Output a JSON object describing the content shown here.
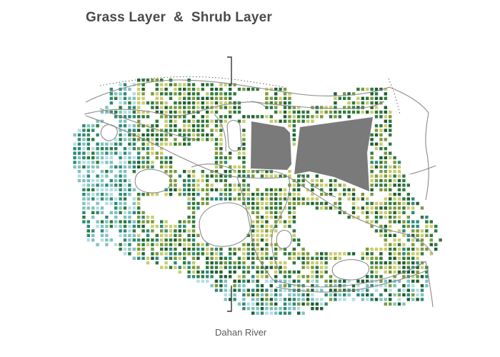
{
  "title": "Grass Layer  &  Shrub Layer",
  "river_label": "Dahan River",
  "palette": {
    "dark_green": "#1f5f33",
    "mid_green": "#2f7a3d",
    "olive": "#7c9a3a",
    "yellow_green": "#c9cc6c",
    "teal": "#2e8a78",
    "light_teal": "#7fc2bf",
    "pale_blue": "#b4dde3",
    "building_gray": "#7a7a7a"
  },
  "legend_items": []
}
